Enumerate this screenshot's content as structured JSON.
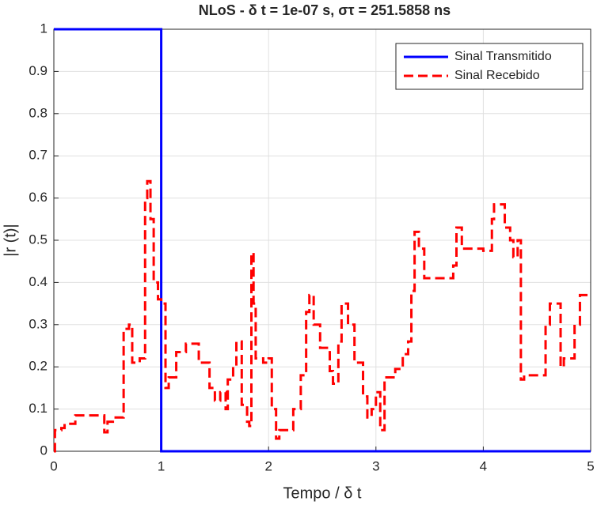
{
  "chart_data": {
    "type": "line",
    "title": "NLoS - δ t = 1e-07 s, στ = 251.5858 ns",
    "xlabel": "Tempo / δ t",
    "ylabel": "|r (t)|",
    "xlim": [
      0,
      5
    ],
    "ylim": [
      0,
      1
    ],
    "xticks": [
      0,
      1,
      2,
      3,
      4,
      5
    ],
    "yticks": [
      0,
      0.1,
      0.2,
      0.3,
      0.4,
      0.5,
      0.6,
      0.7,
      0.8,
      0.9,
      1
    ],
    "grid": true,
    "legend": "northeast",
    "drawstyle": "steps-post",
    "series": [
      {
        "name": "Sinal Transmitido",
        "color": "#0000ff",
        "linestyle": "solid",
        "x": [
          0,
          1,
          5
        ],
        "values": [
          1,
          0,
          0
        ]
      },
      {
        "name": "Sinal Recebido",
        "color": "#ff0000",
        "linestyle": "dashed",
        "x": [
          0,
          0.01,
          0.07,
          0.1,
          0.2,
          0.47,
          0.5,
          0.55,
          0.65,
          0.7,
          0.73,
          0.8,
          0.85,
          0.87,
          0.9,
          0.93,
          0.97,
          1.0,
          1.04,
          1.07,
          1.14,
          1.23,
          1.35,
          1.45,
          1.5,
          1.55,
          1.6,
          1.62,
          1.67,
          1.7,
          1.75,
          1.8,
          1.82,
          1.84,
          1.86,
          1.88,
          1.95,
          2.0,
          2.03,
          2.07,
          2.1,
          2.23,
          2.3,
          2.35,
          2.38,
          2.42,
          2.48,
          2.57,
          2.6,
          2.65,
          2.68,
          2.74,
          2.8,
          2.88,
          2.92,
          2.96,
          3.0,
          3.04,
          3.08,
          3.18,
          3.25,
          3.3,
          3.33,
          3.36,
          3.4,
          3.45,
          3.72,
          3.75,
          3.8,
          4.0,
          4.08,
          4.1,
          4.2,
          4.25,
          4.28,
          4.32,
          4.35,
          4.38,
          4.58,
          4.62,
          4.72,
          4.75,
          4.85,
          4.9,
          5.0
        ],
        "values": [
          0,
          0.05,
          0.055,
          0.065,
          0.085,
          0.045,
          0.07,
          0.08,
          0.29,
          0.3,
          0.21,
          0.22,
          0.6,
          0.64,
          0.55,
          0.4,
          0.36,
          0.35,
          0.15,
          0.175,
          0.235,
          0.255,
          0.21,
          0.15,
          0.12,
          0.14,
          0.1,
          0.17,
          0.2,
          0.26,
          0.11,
          0.07,
          0.06,
          0.47,
          0.35,
          0.22,
          0.21,
          0.22,
          0.1,
          0.03,
          0.05,
          0.1,
          0.18,
          0.33,
          0.37,
          0.3,
          0.245,
          0.19,
          0.16,
          0.26,
          0.35,
          0.3,
          0.21,
          0.13,
          0.08,
          0.1,
          0.14,
          0.05,
          0.175,
          0.195,
          0.23,
          0.26,
          0.38,
          0.52,
          0.48,
          0.41,
          0.44,
          0.53,
          0.48,
          0.475,
          0.55,
          0.585,
          0.53,
          0.5,
          0.46,
          0.5,
          0.17,
          0.18,
          0.3,
          0.35,
          0.2,
          0.22,
          0.3,
          0.37,
          0.37
        ]
      }
    ]
  }
}
